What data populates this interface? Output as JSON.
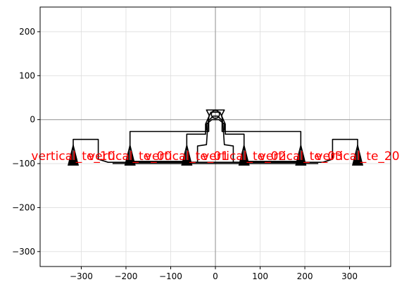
{
  "chart_data": {
    "type": "scatter",
    "title": "",
    "xlabel": "",
    "ylabel": "",
    "xlim": [
      -392,
      392
    ],
    "ylim": [
      -334,
      256
    ],
    "grid": true,
    "axis_lines": {
      "x0": true,
      "y0": true
    },
    "x_ticks": [
      {
        "value": -300,
        "label": "−300"
      },
      {
        "value": -200,
        "label": "−200"
      },
      {
        "value": -100,
        "label": "−100"
      },
      {
        "value": 0,
        "label": "0"
      },
      {
        "value": 100,
        "label": "100"
      },
      {
        "value": 200,
        "label": "200"
      },
      {
        "value": 300,
        "label": "300"
      }
    ],
    "y_ticks": [
      {
        "value": 200,
        "label": "200"
      },
      {
        "value": 100,
        "label": "100"
      },
      {
        "value": 0,
        "label": "0"
      },
      {
        "value": -100,
        "label": "−100"
      },
      {
        "value": -200,
        "label": "−200"
      },
      {
        "value": -300,
        "label": "−300"
      }
    ],
    "markers": [
      {
        "x": -318,
        "y": -82,
        "label": "vertical_te_10"
      },
      {
        "x": -191,
        "y": -82,
        "label": "vertical_te_00"
      },
      {
        "x": -64,
        "y": -82,
        "label": "vertical_te_01"
      },
      {
        "x": 64,
        "y": -82,
        "label": "vertical_te_02"
      },
      {
        "x": 191,
        "y": -82,
        "label": "vertical_te_03"
      },
      {
        "x": 318,
        "y": -82,
        "label": "vertical_te_20"
      }
    ],
    "waveguide_paths": [
      [
        [
          -318,
          -70
        ],
        [
          -318,
          -45
        ],
        [
          -262,
          -45
        ],
        [
          -262,
          -90
        ],
        [
          -240,
          -97
        ],
        [
          -40,
          -97
        ],
        [
          -40,
          -60
        ],
        [
          -20,
          -57
        ],
        [
          -17,
          -12
        ],
        [
          -14,
          10
        ],
        [
          -20,
          22
        ],
        [
          20,
          22
        ],
        [
          14,
          10
        ],
        [
          17,
          -12
        ],
        [
          20,
          -57
        ],
        [
          40,
          -60
        ],
        [
          40,
          -97
        ],
        [
          240,
          -97
        ],
        [
          262,
          -90
        ],
        [
          262,
          -45
        ],
        [
          318,
          -45
        ],
        [
          318,
          -70
        ]
      ],
      [
        [
          -191,
          -70
        ],
        [
          -191,
          -27
        ],
        [
          -15,
          -27
        ],
        [
          -15,
          -2
        ],
        [
          -5,
          8
        ],
        [
          5,
          8
        ],
        [
          15,
          -2
        ],
        [
          15,
          -27
        ],
        [
          191,
          -27
        ],
        [
          191,
          -70
        ]
      ],
      [
        [
          -64,
          -70
        ],
        [
          -64,
          -33
        ],
        [
          -22,
          -33
        ],
        [
          -22,
          -10
        ],
        [
          -10,
          17
        ],
        [
          10,
          17
        ],
        [
          22,
          -10
        ],
        [
          22,
          -33
        ],
        [
          64,
          -33
        ],
        [
          64,
          -70
        ]
      ],
      [
        [
          -20,
          -25
        ],
        [
          -20,
          -10
        ],
        [
          -8,
          0
        ],
        [
          8,
          0
        ],
        [
          20,
          -10
        ],
        [
          20,
          -25
        ]
      ],
      [
        [
          -230,
          -100
        ],
        [
          230,
          -100
        ]
      ],
      [
        [
          -200,
          -95
        ],
        [
          -70,
          -95
        ],
        [
          -55,
          -97
        ],
        [
          55,
          -97
        ],
        [
          70,
          -95
        ],
        [
          200,
          -95
        ]
      ]
    ],
    "rings": [
      {
        "cx": 0,
        "cy": 12,
        "r": 9
      }
    ],
    "colors": {
      "waveguide": "#000000",
      "marker": "#000000",
      "label": "#ff0000",
      "grid": "#dddddd",
      "axis_line": "#a0a0a0",
      "frame": "#000000"
    }
  }
}
